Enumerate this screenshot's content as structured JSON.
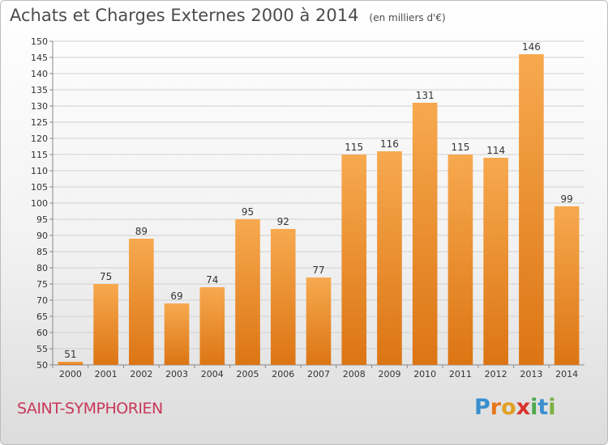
{
  "title": "Achats et Charges Externes 2000 à 2014",
  "subtitle": "(en milliers d'€)",
  "place": "SAINT-SYMPHORIEN",
  "logo": {
    "letters": [
      "P",
      "r",
      "o",
      "x",
      "i",
      "t",
      "i"
    ],
    "colors": [
      "#3a8fd0",
      "#e8761c",
      "#e0a020",
      "#d8342c",
      "#4aa84a",
      "#3a8fd0",
      "#7ab040"
    ]
  },
  "colors": {
    "bar_light": "#f7a94f",
    "bar_dark": "#dc7514",
    "grid": "#d0d0d0"
  },
  "chart_data": {
    "type": "bar",
    "categories": [
      "2000",
      "2001",
      "2002",
      "2003",
      "2004",
      "2005",
      "2006",
      "2007",
      "2008",
      "2009",
      "2010",
      "2011",
      "2012",
      "2013",
      "2014"
    ],
    "values": [
      51,
      75,
      89,
      69,
      74,
      95,
      92,
      77,
      115,
      116,
      131,
      115,
      114,
      146,
      99
    ],
    "ylim": [
      50,
      150
    ],
    "yticks": [
      50,
      55,
      60,
      65,
      70,
      75,
      80,
      85,
      90,
      95,
      100,
      105,
      110,
      115,
      120,
      125,
      130,
      135,
      140,
      145,
      150
    ],
    "grid": true
  }
}
